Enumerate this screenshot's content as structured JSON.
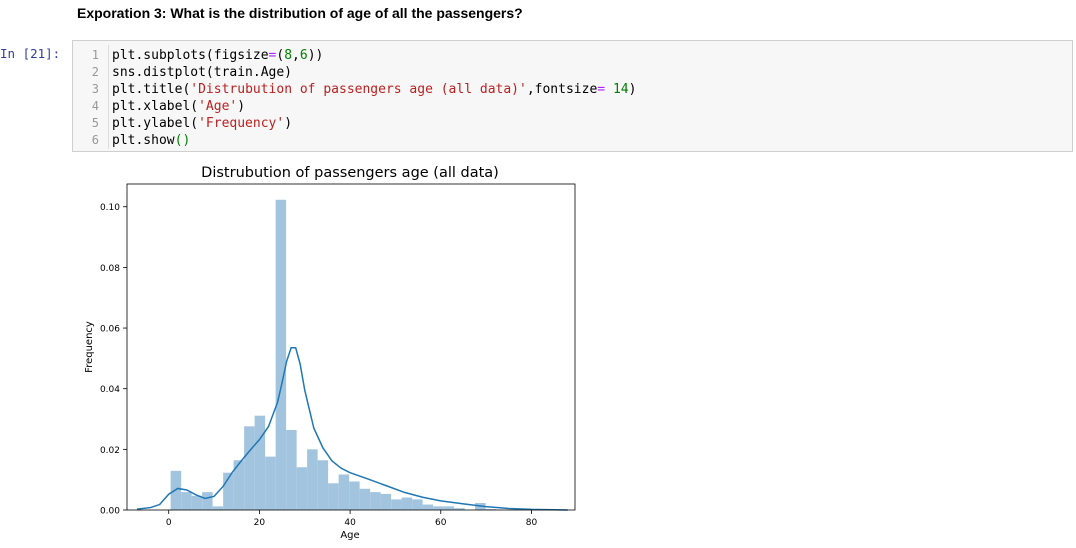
{
  "heading": "Exporation 3: What is the distribution of age of all the passengers?",
  "prompt": "In [21]:",
  "code": {
    "line_numbers": [
      "1",
      "2",
      "3",
      "4",
      "5",
      "6"
    ],
    "lines": [
      [
        {
          "t": "plt.subplots(figsize"
        },
        {
          "t": "=",
          "c": "o"
        },
        {
          "t": "("
        },
        {
          "t": "8",
          "c": "n"
        },
        {
          "t": ","
        },
        {
          "t": "6",
          "c": "n"
        },
        {
          "t": "))"
        }
      ],
      [
        {
          "t": "sns.distplot(train.Age)"
        }
      ],
      [
        {
          "t": "plt.title("
        },
        {
          "t": "'Distrubution of passengers age (all data)'",
          "c": "s"
        },
        {
          "t": ",fontsize"
        },
        {
          "t": "=",
          "c": "o"
        },
        {
          "t": " "
        },
        {
          "t": "14",
          "c": "n"
        },
        {
          "t": ")"
        }
      ],
      [
        {
          "t": "plt.xlabel("
        },
        {
          "t": "'Age'",
          "c": "s"
        },
        {
          "t": ")"
        }
      ],
      [
        {
          "t": "plt.ylabel("
        },
        {
          "t": "'Frequency'",
          "c": "s"
        },
        {
          "t": ")"
        }
      ],
      [
        {
          "t": "plt.show"
        },
        {
          "t": "()",
          "c": "n"
        }
      ]
    ]
  },
  "chart_data": {
    "type": "bar",
    "title": "Distrubution of passengers age (all data)",
    "xlabel": "Age",
    "ylabel": "Frequency",
    "xlim": [
      -9.2,
      89.6
    ],
    "ylim": [
      0,
      0.1075
    ],
    "xticks": [
      0,
      20,
      40,
      60,
      80
    ],
    "yticks": [
      0.0,
      0.02,
      0.04,
      0.06,
      0.08,
      0.1
    ],
    "ytick_labels": [
      "0.00",
      "0.02",
      "0.04",
      "0.06",
      "0.08",
      "0.10"
    ],
    "bar_color": "#a3c4de",
    "line_color": "#1f77b4",
    "bins": [
      {
        "x0": 0.42,
        "x1": 2.74,
        "y": 0.0129
      },
      {
        "x0": 2.74,
        "x1": 5.05,
        "y": 0.0059
      },
      {
        "x0": 5.05,
        "x1": 7.37,
        "y": 0.0047
      },
      {
        "x0": 7.37,
        "x1": 9.68,
        "y": 0.0059
      },
      {
        "x0": 9.68,
        "x1": 12.0,
        "y": 0.0012
      },
      {
        "x0": 12.0,
        "x1": 14.31,
        "y": 0.0123
      },
      {
        "x0": 14.31,
        "x1": 16.63,
        "y": 0.0164
      },
      {
        "x0": 16.63,
        "x1": 18.95,
        "y": 0.0276
      },
      {
        "x0": 18.95,
        "x1": 21.26,
        "y": 0.0311
      },
      {
        "x0": 21.26,
        "x1": 23.58,
        "y": 0.0176
      },
      {
        "x0": 23.58,
        "x1": 25.89,
        "y": 0.1023
      },
      {
        "x0": 25.89,
        "x1": 28.21,
        "y": 0.0264
      },
      {
        "x0": 28.21,
        "x1": 30.52,
        "y": 0.0141
      },
      {
        "x0": 30.52,
        "x1": 32.84,
        "y": 0.02
      },
      {
        "x0": 32.84,
        "x1": 35.15,
        "y": 0.0164
      },
      {
        "x0": 35.15,
        "x1": 37.47,
        "y": 0.0088
      },
      {
        "x0": 37.47,
        "x1": 39.79,
        "y": 0.0117
      },
      {
        "x0": 39.79,
        "x1": 42.1,
        "y": 0.0094
      },
      {
        "x0": 42.1,
        "x1": 44.42,
        "y": 0.007
      },
      {
        "x0": 44.42,
        "x1": 46.73,
        "y": 0.0059
      },
      {
        "x0": 46.73,
        "x1": 49.05,
        "y": 0.0053
      },
      {
        "x0": 49.05,
        "x1": 51.36,
        "y": 0.0035
      },
      {
        "x0": 51.36,
        "x1": 53.68,
        "y": 0.0041
      },
      {
        "x0": 53.68,
        "x1": 56.0,
        "y": 0.0035
      },
      {
        "x0": 56.0,
        "x1": 58.31,
        "y": 0.0018
      },
      {
        "x0": 58.31,
        "x1": 60.63,
        "y": 0.0012
      },
      {
        "x0": 60.63,
        "x1": 62.94,
        "y": 0.0012
      },
      {
        "x0": 62.94,
        "x1": 65.26,
        "y": 0.0006
      },
      {
        "x0": 65.26,
        "x1": 67.57,
        "y": 0.0
      },
      {
        "x0": 67.57,
        "x1": 69.89,
        "y": 0.0023
      },
      {
        "x0": 69.89,
        "x1": 72.21,
        "y": 0.0003
      }
    ],
    "kde": {
      "x": [
        -7,
        -4,
        -2,
        0,
        2,
        4,
        6,
        8,
        10,
        12,
        14,
        16,
        18,
        20,
        22,
        24,
        25,
        26,
        27,
        28,
        29,
        30,
        32,
        34,
        36,
        38,
        40,
        44,
        48,
        52,
        56,
        60,
        65,
        70,
        75,
        80,
        88
      ],
      "y": [
        0.0003,
        0.0008,
        0.0018,
        0.0052,
        0.0071,
        0.0066,
        0.005,
        0.0038,
        0.0045,
        0.0078,
        0.0124,
        0.0162,
        0.0198,
        0.0232,
        0.0275,
        0.0355,
        0.042,
        0.049,
        0.0535,
        0.0535,
        0.048,
        0.0395,
        0.027,
        0.0205,
        0.0162,
        0.0138,
        0.0123,
        0.0102,
        0.008,
        0.0058,
        0.0042,
        0.003,
        0.002,
        0.0011,
        0.0005,
        0.0002,
        0.0
      ]
    }
  }
}
